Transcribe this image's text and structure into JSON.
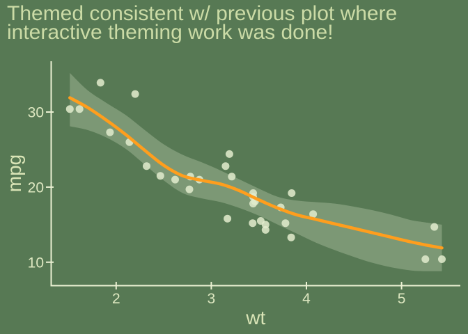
{
  "title": {
    "lines": [
      "Themed consistent w/ previous plot where",
      "interactive theming work was done!"
    ]
  },
  "colors": {
    "background": "#577954",
    "title_text": "#cbdba6",
    "axis_line": "#eaf0d2",
    "tick_label": "#dde7c0",
    "axis_title_text": "#d9e4b6",
    "point_fill": "#e3ecce",
    "point_opacity": 0.85,
    "smooth_line": "#ff9e1d",
    "ribbon_fill": "#dfe9cc",
    "ribbon_opacity": 0.28
  },
  "chart_data": {
    "type": "scatter",
    "title": "Themed consistent w/ previous plot where interactive theming work was done!",
    "xlabel": "wt",
    "ylabel": "mpg",
    "x_ticks": [
      2,
      3,
      4,
      5
    ],
    "y_ticks": [
      10,
      20,
      30
    ],
    "xlim": [
      1.32,
      5.62
    ],
    "ylim": [
      6.8,
      36.8
    ],
    "grid": false,
    "legend": "none",
    "points": [
      [
        2.62,
        21.0
      ],
      [
        2.875,
        21.0
      ],
      [
        2.32,
        22.8
      ],
      [
        3.215,
        21.4
      ],
      [
        3.44,
        18.7
      ],
      [
        3.46,
        18.1
      ],
      [
        3.57,
        14.3
      ],
      [
        3.19,
        24.4
      ],
      [
        3.15,
        22.8
      ],
      [
        3.44,
        19.2
      ],
      [
        3.44,
        17.8
      ],
      [
        4.07,
        16.4
      ],
      [
        3.73,
        17.3
      ],
      [
        3.78,
        15.2
      ],
      [
        5.25,
        10.4
      ],
      [
        5.424,
        10.4
      ],
      [
        5.345,
        14.7
      ],
      [
        2.2,
        32.4
      ],
      [
        1.615,
        30.4
      ],
      [
        1.835,
        33.9
      ],
      [
        2.465,
        21.5
      ],
      [
        3.52,
        15.5
      ],
      [
        3.435,
        15.2
      ],
      [
        3.84,
        13.3
      ],
      [
        3.845,
        19.2
      ],
      [
        1.935,
        27.3
      ],
      [
        2.14,
        26.0
      ],
      [
        1.513,
        30.4
      ],
      [
        3.17,
        15.8
      ],
      [
        2.77,
        19.7
      ],
      [
        3.57,
        15.0
      ],
      [
        2.78,
        21.4
      ]
    ],
    "smooth": {
      "x": [
        1.513,
        1.7,
        1.9,
        2.1,
        2.3,
        2.5,
        2.7,
        2.9,
        3.1,
        3.3,
        3.5,
        3.7,
        3.9,
        4.1,
        4.3,
        4.5,
        4.7,
        4.9,
        5.1,
        5.25,
        5.424
      ],
      "y": [
        31.9,
        30.6,
        28.9,
        27.0,
        24.9,
        22.9,
        21.5,
        20.9,
        20.4,
        19.5,
        18.3,
        17.2,
        16.3,
        15.7,
        15.1,
        14.5,
        13.9,
        13.3,
        12.7,
        12.3,
        11.9
      ],
      "upper": [
        35.2,
        32.9,
        31.2,
        29.6,
        27.6,
        25.7,
        24.3,
        23.3,
        22.2,
        21.0,
        19.8,
        18.7,
        18.2,
        18.0,
        17.8,
        17.4,
        16.9,
        16.3,
        15.6,
        15.3,
        15.0
      ],
      "lower": [
        28.1,
        27.6,
        26.6,
        25.1,
        23.0,
        20.9,
        19.2,
        18.5,
        18.0,
        17.2,
        16.2,
        15.0,
        13.8,
        12.6,
        11.6,
        10.7,
        9.9,
        9.3,
        8.9,
        8.8,
        8.8
      ]
    }
  }
}
